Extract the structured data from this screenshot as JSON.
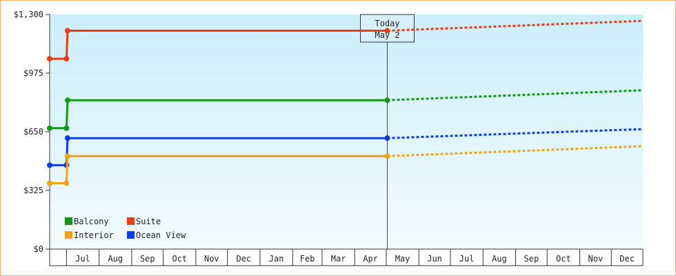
{
  "chart_data": {
    "type": "line",
    "title": "",
    "xlabel": "",
    "ylabel": "",
    "ylim": [
      0,
      1300
    ],
    "yticks": [
      0,
      325,
      650,
      975,
      1300
    ],
    "ytick_labels": [
      "$0",
      "$325",
      "$650",
      "$975",
      "$1,300"
    ],
    "x_range": [
      "2024-06-15",
      "2025-12-31"
    ],
    "x_tick_labels": [
      {
        "label": "Jul",
        "date": "2024-07-01"
      },
      {
        "label": "Aug",
        "date": "2024-08-01"
      },
      {
        "label": "Sep",
        "date": "2024-09-01"
      },
      {
        "label": "Oct",
        "date": "2024-10-01"
      },
      {
        "label": "Nov",
        "date": "2024-11-01"
      },
      {
        "label": "Dec",
        "date": "2024-12-01"
      },
      {
        "label": "Jan",
        "date": "2025-01-01"
      },
      {
        "label": "Feb",
        "date": "2025-02-01"
      },
      {
        "label": "Mar",
        "date": "2025-03-01"
      },
      {
        "label": "Apr",
        "date": "2025-04-01"
      },
      {
        "label": "May",
        "date": "2025-05-01"
      },
      {
        "label": "Jun",
        "date": "2025-06-01"
      },
      {
        "label": "Jul",
        "date": "2025-07-01"
      },
      {
        "label": "Aug",
        "date": "2025-08-01"
      },
      {
        "label": "Sep",
        "date": "2025-09-01"
      },
      {
        "label": "Oct",
        "date": "2025-10-01"
      },
      {
        "label": "Nov",
        "date": "2025-11-01"
      },
      {
        "label": "Dec",
        "date": "2025-12-01"
      }
    ],
    "today": {
      "line1": "Today",
      "line2": "May 2",
      "date": "2025-05-02"
    },
    "legend_position": "bottom-left",
    "grid": false,
    "background_gradient": [
      "#cbeefb",
      "#f3fbfe"
    ],
    "series": [
      {
        "name": "Suite",
        "color": "#ee3b12",
        "points": [
          {
            "date": "2024-06-15",
            "value": 1055
          },
          {
            "date": "2024-07-01",
            "value": 1055
          },
          {
            "date": "2024-07-02",
            "value": 1210
          },
          {
            "date": "2025-05-02",
            "value": 1210
          }
        ],
        "forecast": [
          {
            "date": "2025-05-02",
            "value": 1210
          },
          {
            "date": "2025-12-31",
            "value": 1265
          }
        ]
      },
      {
        "name": "Balcony",
        "color": "#119a11",
        "points": [
          {
            "date": "2024-06-15",
            "value": 670
          },
          {
            "date": "2024-07-01",
            "value": 670
          },
          {
            "date": "2024-07-02",
            "value": 825
          },
          {
            "date": "2025-05-02",
            "value": 825
          }
        ],
        "forecast": [
          {
            "date": "2025-05-02",
            "value": 825
          },
          {
            "date": "2025-12-31",
            "value": 880
          }
        ]
      },
      {
        "name": "Ocean View",
        "color": "#0a3ced",
        "points": [
          {
            "date": "2024-06-15",
            "value": 465
          },
          {
            "date": "2024-07-01",
            "value": 465
          },
          {
            "date": "2024-07-02",
            "value": 615
          },
          {
            "date": "2025-05-02",
            "value": 615
          }
        ],
        "forecast": [
          {
            "date": "2025-05-02",
            "value": 615
          },
          {
            "date": "2025-12-31",
            "value": 665
          }
        ]
      },
      {
        "name": "Interior",
        "color": "#f5a20f",
        "points": [
          {
            "date": "2024-06-15",
            "value": 365
          },
          {
            "date": "2024-07-01",
            "value": 365
          },
          {
            "date": "2024-07-02",
            "value": 515
          },
          {
            "date": "2025-05-02",
            "value": 515
          }
        ],
        "forecast": [
          {
            "date": "2025-05-02",
            "value": 515
          },
          {
            "date": "2025-12-31",
            "value": 570
          }
        ]
      }
    ],
    "legend_order": [
      "Balcony",
      "Suite",
      "Interior",
      "Ocean View"
    ]
  }
}
